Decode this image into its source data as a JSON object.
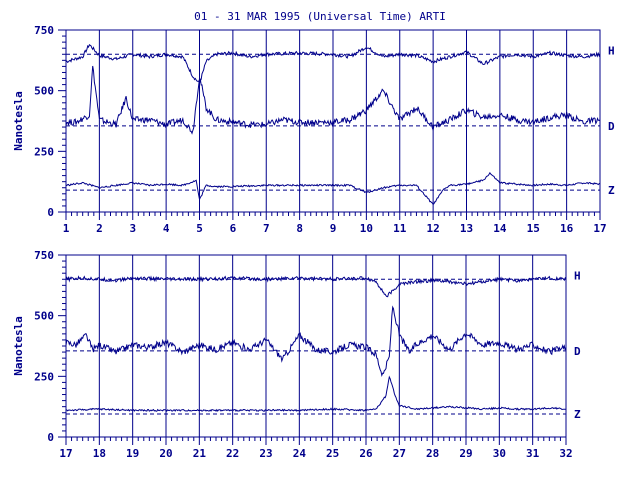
{
  "title": "01 - 31 MAR 1995 (Universal Time) ARTI",
  "colors": {
    "ink": "#00008b",
    "background": "#ffffff"
  },
  "chart_data": [
    {
      "type": "line",
      "panel": "top",
      "xlabel": "",
      "ylabel": "Nanotesla",
      "ylim": [
        0,
        750
      ],
      "xlim": [
        1,
        17
      ],
      "xticks": [
        "1",
        "2",
        "3",
        "4",
        "5",
        "6",
        "7",
        "8",
        "9",
        "10",
        "11",
        "12",
        "13",
        "14",
        "15",
        "16",
        "17"
      ],
      "yticks": [
        "0",
        "250",
        "500",
        "750"
      ],
      "grid": "vertical",
      "baselines": [
        {
          "series": "H",
          "value": 650
        },
        {
          "series": "D",
          "value": 355
        },
        {
          "series": "Z",
          "value": 90
        }
      ],
      "series": [
        {
          "name": "H",
          "x": [
            1.0,
            1.5,
            1.7,
            2.0,
            2.5,
            3.0,
            3.5,
            4.0,
            4.5,
            4.8,
            5.0,
            5.2,
            5.5,
            6.0,
            6.5,
            7.0,
            8.0,
            9.0,
            9.5,
            10.0,
            10.5,
            11.0,
            11.5,
            12.0,
            12.5,
            13.0,
            13.5,
            14.0,
            14.5,
            15.0,
            15.5,
            16.0,
            16.5,
            17.0
          ],
          "values": [
            620,
            640,
            690,
            645,
            630,
            650,
            640,
            650,
            640,
            560,
            530,
            620,
            650,
            655,
            640,
            650,
            655,
            650,
            640,
            680,
            640,
            650,
            645,
            620,
            640,
            660,
            610,
            640,
            650,
            640,
            655,
            645,
            640,
            650
          ]
        },
        {
          "name": "D",
          "x": [
            1.0,
            1.3,
            1.7,
            1.8,
            2.0,
            2.5,
            2.8,
            3.0,
            3.5,
            4.0,
            4.5,
            4.8,
            5.0,
            5.2,
            5.5,
            6.0,
            6.5,
            7.0,
            7.5,
            8.0,
            8.5,
            9.0,
            9.5,
            10.0,
            10.5,
            11.0,
            11.5,
            12.0,
            12.5,
            13.0,
            13.5,
            14.0,
            14.5,
            15.0,
            15.5,
            16.0,
            16.5,
            17.0
          ],
          "values": [
            370,
            370,
            400,
            600,
            380,
            360,
            470,
            380,
            380,
            360,
            380,
            330,
            560,
            430,
            380,
            370,
            360,
            360,
            380,
            370,
            370,
            370,
            380,
            420,
            500,
            380,
            430,
            350,
            380,
            420,
            390,
            400,
            380,
            370,
            390,
            400,
            370,
            380
          ]
        },
        {
          "name": "Z",
          "x": [
            1.0,
            1.5,
            2.0,
            2.5,
            3.0,
            3.5,
            4.0,
            4.5,
            4.9,
            5.0,
            5.2,
            5.5,
            6.0,
            7.0,
            8.0,
            9.0,
            9.5,
            10.0,
            10.5,
            11.0,
            11.5,
            12.0,
            12.3,
            12.5,
            13.0,
            13.5,
            13.7,
            14.0,
            14.5,
            15.0,
            15.5,
            16.0,
            16.5,
            17.0
          ],
          "values": [
            110,
            120,
            100,
            110,
            120,
            110,
            115,
            110,
            130,
            50,
            110,
            105,
            105,
            110,
            110,
            110,
            110,
            80,
            100,
            110,
            110,
            30,
            90,
            110,
            115,
            130,
            160,
            120,
            115,
            110,
            115,
            110,
            120,
            115
          ]
        }
      ]
    },
    {
      "type": "line",
      "panel": "bottom",
      "xlabel": "",
      "ylabel": "Nanotesla",
      "ylim": [
        0,
        750
      ],
      "xlim": [
        17,
        32
      ],
      "xticks": [
        "17",
        "18",
        "19",
        "20",
        "21",
        "22",
        "23",
        "24",
        "25",
        "26",
        "27",
        "28",
        "29",
        "30",
        "31",
        "32"
      ],
      "yticks": [
        "0",
        "250",
        "500",
        "750"
      ],
      "grid": "vertical",
      "baselines": [
        {
          "series": "H",
          "value": 650
        },
        {
          "series": "D",
          "value": 355
        },
        {
          "series": "Z",
          "value": 95
        }
      ],
      "series": [
        {
          "name": "H",
          "x": [
            17.0,
            17.5,
            18.0,
            18.5,
            19.0,
            20.0,
            21.0,
            22.0,
            23.0,
            24.0,
            25.0,
            26.0,
            26.3,
            26.6,
            26.8,
            27.0,
            27.5,
            28.0,
            28.5,
            29.0,
            29.5,
            30.0,
            30.5,
            31.0,
            31.5,
            32.0
          ],
          "values": [
            650,
            655,
            650,
            645,
            655,
            650,
            650,
            655,
            650,
            655,
            650,
            655,
            640,
            580,
            600,
            630,
            640,
            645,
            640,
            630,
            640,
            650,
            645,
            650,
            655,
            650
          ]
        },
        {
          "name": "D",
          "x": [
            17.0,
            17.3,
            17.6,
            17.8,
            18.0,
            18.5,
            19.0,
            19.5,
            20.0,
            20.5,
            21.0,
            21.5,
            22.0,
            22.5,
            23.0,
            23.5,
            24.0,
            24.5,
            25.0,
            25.5,
            26.0,
            26.3,
            26.5,
            26.7,
            26.8,
            27.0,
            27.3,
            27.5,
            28.0,
            28.5,
            29.0,
            29.5,
            30.0,
            30.5,
            31.0,
            31.5,
            32.0
          ],
          "values": [
            390,
            380,
            420,
            360,
            380,
            350,
            380,
            370,
            390,
            350,
            380,
            360,
            390,
            360,
            400,
            320,
            420,
            360,
            350,
            380,
            370,
            340,
            250,
            330,
            540,
            420,
            350,
            380,
            420,
            360,
            430,
            380,
            390,
            360,
            380,
            350,
            370
          ]
        },
        {
          "name": "Z",
          "x": [
            17.0,
            18.0,
            19.0,
            20.0,
            21.0,
            22.0,
            23.0,
            24.0,
            25.0,
            26.0,
            26.3,
            26.6,
            26.7,
            26.9,
            27.0,
            27.5,
            28.0,
            28.5,
            29.0,
            29.5,
            30.0,
            30.5,
            31.0,
            31.5,
            32.0
          ],
          "values": [
            110,
            115,
            110,
            110,
            110,
            110,
            110,
            110,
            115,
            110,
            115,
            170,
            250,
            160,
            130,
            115,
            120,
            125,
            120,
            115,
            120,
            115,
            115,
            120,
            115
          ]
        }
      ]
    }
  ]
}
